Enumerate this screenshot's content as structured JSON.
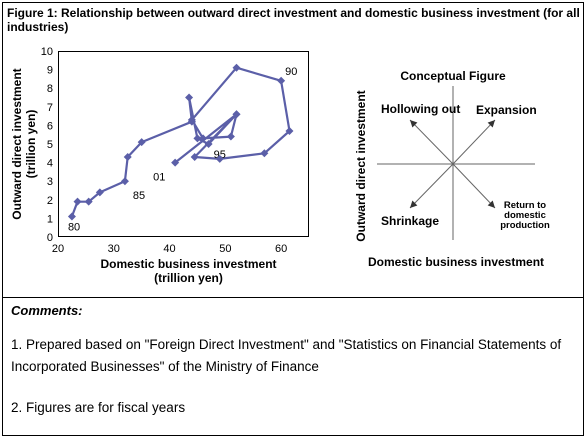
{
  "figure": {
    "title": "Figure 1: Relationship between outward direct investment and domestic business investment (for all industries)"
  },
  "chart_data": [
    {
      "type": "line",
      "xlabel": "Domestic business investment (trillion yen)",
      "ylabel": "Outward direct investment (trillion yen)",
      "xlim": [
        20,
        65
      ],
      "ylim": [
        0,
        10
      ],
      "x_ticks": [
        "20",
        "30",
        "40",
        "50",
        "60"
      ],
      "y_ticks": [
        "0",
        "1",
        "2",
        "3",
        "4",
        "5",
        "6",
        "7",
        "8",
        "9",
        "10"
      ],
      "grid": false,
      "series": [
        {
          "points": [
            {
              "x": 22.5,
              "y": 1.1,
              "label": "80"
            },
            {
              "x": 23.5,
              "y": 1.9
            },
            {
              "x": 25.5,
              "y": 1.9
            },
            {
              "x": 27.5,
              "y": 2.4
            },
            {
              "x": 32.0,
              "y": 3.0,
              "label": "85"
            },
            {
              "x": 32.5,
              "y": 4.3
            },
            {
              "x": 35.0,
              "y": 5.1
            },
            {
              "x": 44.0,
              "y": 6.2
            },
            {
              "x": 43.5,
              "y": 7.5
            },
            {
              "x": 45.0,
              "y": 5.3
            },
            {
              "x": 47.0,
              "y": 5.0,
              "label": "95"
            },
            {
              "x": 52.0,
              "y": 6.6
            },
            {
              "x": 44.5,
              "y": 4.3
            },
            {
              "x": 49.0,
              "y": 4.2
            },
            {
              "x": 57.0,
              "y": 4.5
            },
            {
              "x": 61.5,
              "y": 5.7
            },
            {
              "x": 60.0,
              "y": 8.4,
              "label": "90"
            },
            {
              "x": 52.0,
              "y": 9.1
            },
            {
              "x": 44.0,
              "y": 6.3
            },
            {
              "x": 46.0,
              "y": 5.3
            },
            {
              "x": 51.0,
              "y": 5.4
            },
            {
              "x": 52.0,
              "y": 6.6
            },
            {
              "x": 41.0,
              "y": 4.0,
              "label": "01"
            }
          ]
        }
      ]
    },
    {
      "type": "diagram",
      "title": "Conceptual Figure",
      "xlabel": "Domestic business investment",
      "ylabel": "Outward direct investment",
      "quadrants": [
        "Hollowing out",
        "Expansion",
        "Shrinkage",
        "Return to domestic production"
      ]
    }
  ],
  "comments": {
    "heading": "Comments:",
    "notes": [
      "1. Prepared based on \"Foreign Direct Investment\" and \"Statistics on Financial Statements of Incorporated Businesses\" of the Ministry of Finance",
      "2. Figures are for fiscal years"
    ]
  },
  "colors": {
    "series": "#5b5fa8",
    "axis": "#000000",
    "concept_line": "#666666"
  }
}
